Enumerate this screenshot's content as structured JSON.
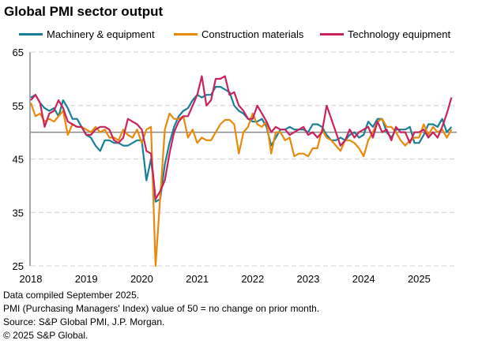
{
  "chart_data": {
    "type": "line",
    "title": "Global PMI sector output",
    "xlabel": "",
    "ylabel": "",
    "ylim": [
      25,
      65
    ],
    "yticks": [
      25,
      35,
      45,
      55,
      65
    ],
    "reference_line": 50,
    "x_start": "2018-01",
    "x_frequency": "monthly",
    "xtick_labels": [
      "2018",
      "2019",
      "2020",
      "2021",
      "2022",
      "2023",
      "2024",
      "2025"
    ],
    "grid": "horizontal dashed",
    "legend_position": "top",
    "series": [
      {
        "name": "Machinery & equipment",
        "color": "#1a7f96",
        "values": [
          56.5,
          57,
          55.5,
          54.5,
          54,
          54.5,
          53,
          56,
          54.5,
          52.5,
          52.5,
          51,
          49.5,
          49,
          47.5,
          46.5,
          48.5,
          48.5,
          48,
          48,
          47.5,
          47.5,
          48,
          48.5,
          48.5,
          41,
          45,
          37,
          37.5,
          44,
          48,
          51,
          53,
          54,
          54.5,
          56,
          57,
          56.5,
          57,
          57,
          58.5,
          58.5,
          58,
          57.5,
          55,
          54,
          53.5,
          52.5,
          52,
          52,
          52.5,
          51,
          47.5,
          49,
          50.5,
          50.5,
          51,
          50.5,
          50.5,
          50.5,
          50,
          51.5,
          51.5,
          51,
          49.5,
          48.5,
          48.5,
          49,
          48.5,
          49.5,
          50,
          49,
          49.5,
          52,
          51,
          52.5,
          52.5,
          50,
          49,
          50.5,
          50.5,
          50.5,
          51,
          48,
          48,
          49.5,
          51.5,
          51.5,
          51,
          52.5,
          50,
          51
        ]
      },
      {
        "name": "Construction materials",
        "color": "#e8890c",
        "values": [
          55.5,
          53,
          53.5,
          52,
          52.5,
          52,
          53,
          54,
          49.5,
          51.5,
          51,
          51,
          50.5,
          50,
          51,
          50,
          50.5,
          49,
          49,
          48.5,
          50.5,
          49.5,
          49,
          50.5,
          48,
          50.5,
          51,
          25,
          38,
          50.5,
          53.5,
          52.5,
          52.5,
          53,
          49,
          50.5,
          48,
          49,
          48.5,
          48.5,
          50,
          51.5,
          52.3,
          52.3,
          51.5,
          46,
          50,
          51,
          53.5,
          51.5,
          51,
          52,
          46,
          50,
          50,
          48.5,
          49,
          45.5,
          46,
          46,
          45.5,
          47,
          47,
          50.5,
          49,
          48.5,
          47.5,
          46.5,
          48.5,
          48.5,
          48,
          47,
          45.5,
          48.5,
          50,
          52,
          52.5,
          51,
          51,
          50,
          48.5,
          47.5,
          48.5,
          49,
          49,
          51.5,
          49.5,
          51,
          50,
          50.5,
          49,
          50.5
        ]
      },
      {
        "name": "Technology equipment",
        "color": "#c8235d",
        "values": [
          56,
          57,
          55.5,
          51,
          53.5,
          54,
          56,
          54.5,
          52,
          51.5,
          51,
          51,
          49.5,
          49.5,
          50.5,
          51,
          51,
          50.5,
          48.5,
          48,
          49,
          52.5,
          52,
          51.5,
          50.5,
          46.5,
          46,
          37.5,
          39,
          41,
          46,
          50,
          52,
          53,
          53,
          55,
          57,
          60.5,
          55,
          56,
          60,
          60,
          60.5,
          57,
          57.5,
          55,
          54,
          52.5,
          52.5,
          55,
          53.5,
          52,
          50,
          51,
          50.5,
          50.5,
          49.5,
          50,
          50.5,
          51,
          49.5,
          50,
          49,
          50,
          55,
          52.5,
          50,
          47.5,
          48.5,
          50.5,
          49,
          50,
          50.5,
          51,
          49,
          52,
          50,
          50.5,
          48.5,
          51,
          50,
          50,
          48,
          50,
          50,
          50.5,
          49,
          50,
          49,
          51,
          53.5,
          56.5
        ]
      }
    ]
  },
  "notes": [
    "Data compiled September 2025.",
    "PMI (Purchasing Managers' Index) value of 50 = no change on prior month.",
    "Source: S&P Global PMI, J.P. Morgan.",
    "© 2025 S&P Global."
  ]
}
